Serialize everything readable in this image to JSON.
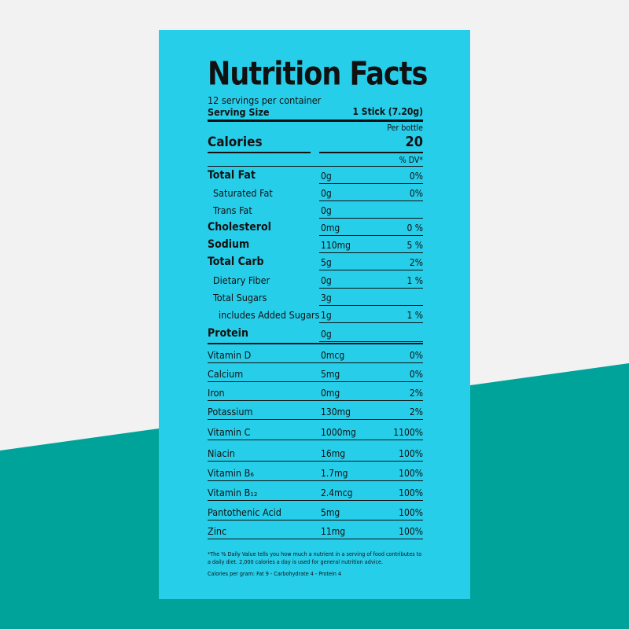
{
  "colors": {
    "panel": "#27ceea",
    "background": "#f2f2f2",
    "accent_band": "#00a39a",
    "text": "#111111"
  },
  "label": {
    "title": "Nutrition Facts",
    "servings": "12 servings per container",
    "serving_size_label": "Serving Size",
    "serving_size_value": "1 Stick (7.20g)",
    "per_bottle": "Per bottle",
    "calories_label": "Calories",
    "calories_value": "20",
    "dv_header": "% DV*",
    "nutrients": [
      {
        "name": "Total Fat",
        "amount": "0g",
        "dv": "0%",
        "level": "major"
      },
      {
        "name": "Saturated Fat",
        "amount": "0g",
        "dv": "0%",
        "level": "sub1"
      },
      {
        "name": "Trans Fat",
        "amount": "0g",
        "dv": "",
        "level": "sub1"
      },
      {
        "name": "Cholesterol",
        "amount": "0mg",
        "dv": "0 %",
        "level": "major"
      },
      {
        "name": "Sodium",
        "amount": "110mg",
        "dv": "5 %",
        "level": "major"
      },
      {
        "name": "Total Carb",
        "amount": "5g",
        "dv": "2%",
        "level": "major"
      },
      {
        "name": "Dietary Fiber",
        "amount": "0g",
        "dv": "1 %",
        "level": "sub1"
      },
      {
        "name": "Total Sugars",
        "amount": "3g",
        "dv": "",
        "level": "sub1"
      },
      {
        "name": "includes Added Sugars",
        "amount": "1g",
        "dv": "1 %",
        "level": "sub2"
      },
      {
        "name": "Protein",
        "amount": "0g",
        "dv": "",
        "level": "major"
      }
    ],
    "vitamins": [
      {
        "name": "Vitamin D",
        "amount": "0mcg",
        "dv": "0%"
      },
      {
        "name": "Calcium",
        "amount": "5mg",
        "dv": "0%"
      },
      {
        "name": "Iron",
        "amount": "0mg",
        "dv": "2%"
      },
      {
        "name": "Potassium",
        "amount": "130mg",
        "dv": "2%"
      },
      {
        "name": "Vitamin C",
        "amount": "1000mg",
        "dv": "1100%"
      },
      {
        "name": "Niacin",
        "amount": "16mg",
        "dv": "100%"
      },
      {
        "name": "Vitamin B₆",
        "amount": "1.7mg",
        "dv": "100%"
      },
      {
        "name": "Vitamin B₁₂",
        "amount": "2.4mcg",
        "dv": "100%"
      },
      {
        "name": "Pantothenic Acid",
        "amount": "5mg",
        "dv": "100%"
      },
      {
        "name": "Zinc",
        "amount": "11mg",
        "dv": "100%"
      }
    ],
    "footnote": "*The % Daily Value tells you how much a nutrient in a serving of food contributes to a daily diet. 2,000 calories a day is used for general nutrition advice.",
    "calories_per_gram": "Calories per gram: Fat 9 - Carbohydrate 4 - Protein 4"
  }
}
